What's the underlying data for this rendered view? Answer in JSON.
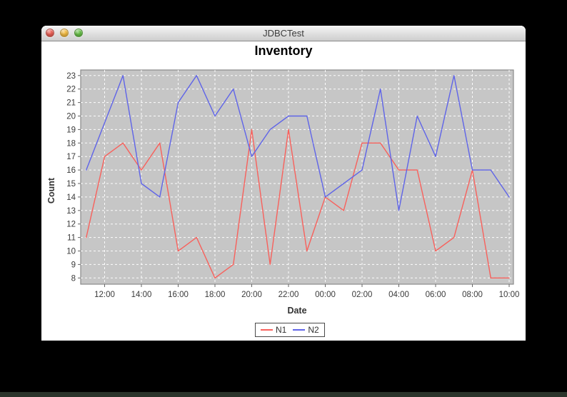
{
  "window": {
    "title": "JDBCTest",
    "buttons": [
      {
        "name": "close",
        "color": "#ec6157"
      },
      {
        "name": "minimize",
        "color": "#f5bd44"
      },
      {
        "name": "zoom",
        "color": "#68c148"
      }
    ]
  },
  "chart_data": {
    "type": "line",
    "title": "Inventory",
    "xlabel": "Date",
    "ylabel": "Count",
    "ylim": [
      8,
      23
    ],
    "y_ticks": [
      8,
      9,
      10,
      11,
      12,
      13,
      14,
      15,
      16,
      17,
      18,
      19,
      20,
      21,
      22,
      23
    ],
    "x_tick_labels": [
      "12:00",
      "14:00",
      "16:00",
      "18:00",
      "20:00",
      "22:00",
      "00:00",
      "02:00",
      "04:00",
      "06:00",
      "08:00",
      "10:00"
    ],
    "categories": [
      "11:00",
      "12:00",
      "13:00",
      "14:00",
      "15:00",
      "16:00",
      "17:00",
      "18:00",
      "19:00",
      "20:00",
      "21:00",
      "22:00",
      "23:00",
      "00:00",
      "01:00",
      "02:00",
      "03:00",
      "04:00",
      "05:00",
      "06:00",
      "07:00",
      "08:00",
      "09:00",
      "10:00"
    ],
    "grid": "white dashed on gray, verticals every 2h",
    "legend_position": "bottom-center",
    "plot_background": "#c6c6c6",
    "series": [
      {
        "name": "N1",
        "color": "#f8615c",
        "values": [
          11,
          17,
          18,
          16,
          18,
          10,
          11,
          8,
          9,
          19,
          9,
          19,
          10,
          14,
          13,
          18,
          18,
          16,
          16,
          10,
          11,
          16,
          8,
          8
        ]
      },
      {
        "name": "N2",
        "color": "#5f64e8",
        "values": [
          16,
          19.5,
          23,
          15,
          14,
          21,
          23,
          20,
          22,
          17,
          19,
          20,
          20,
          14,
          15,
          16,
          22,
          13,
          20,
          17,
          23,
          16,
          16,
          14
        ]
      }
    ]
  }
}
